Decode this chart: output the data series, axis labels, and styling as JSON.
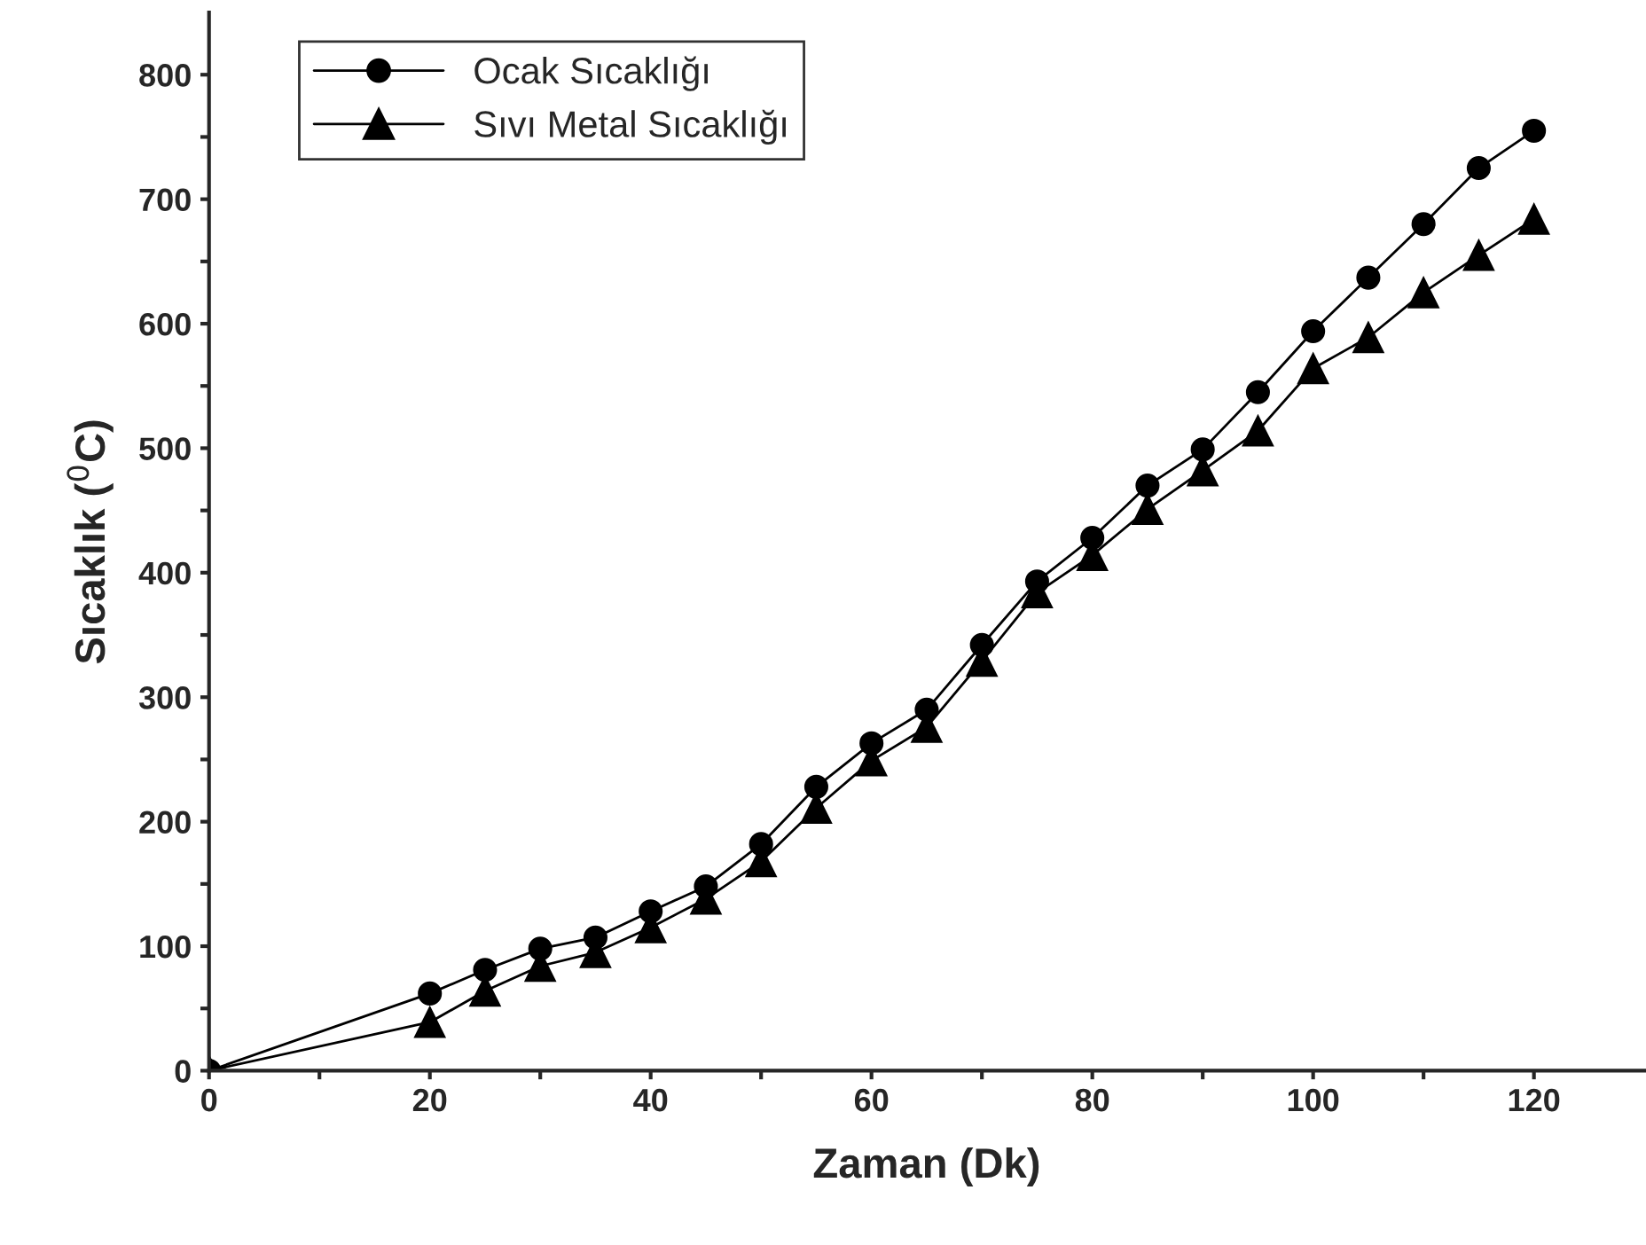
{
  "chart_data": {
    "type": "line",
    "xlabel": "Zaman (Dk)",
    "ylabel": "Sıcaklık ($^{0}$C)",
    "xlim": [
      0,
      130
    ],
    "ylim": [
      0,
      850
    ],
    "xticks": [
      0,
      {
        "value": 10,
        "label": null
      },
      20,
      {
        "value": 30,
        "label": null
      },
      40,
      {
        "value": 50,
        "label": null
      },
      60,
      {
        "value": 70,
        "label": null
      },
      80,
      {
        "value": 90,
        "label": null
      },
      100,
      {
        "value": 110,
        "label": null
      },
      120
    ],
    "yticks": [
      0,
      {
        "value": 50,
        "label": null
      },
      100,
      {
        "value": 150,
        "label": null
      },
      200,
      {
        "value": 250,
        "label": null
      },
      300,
      {
        "value": 350,
        "label": null
      },
      400,
      {
        "value": 450,
        "label": null
      },
      500,
      {
        "value": 550,
        "label": null
      },
      600,
      {
        "value": 650,
        "label": null
      },
      700,
      {
        "value": 750,
        "label": null
      },
      800
    ],
    "legend": "top left",
    "grid": false,
    "line_style": "solid",
    "series": [
      {
        "name": "Ocak Sıcaklığı",
        "color": "#000000",
        "marker": "circle",
        "x": [
          0,
          20,
          25,
          30,
          35,
          40,
          45,
          50,
          55,
          60,
          65,
          70,
          75,
          80,
          85,
          90,
          95,
          100,
          105,
          110,
          115,
          120
        ],
        "values": [
          0,
          62,
          81,
          98,
          107,
          128,
          148,
          182,
          228,
          263,
          290,
          342,
          393,
          428,
          470,
          499,
          545,
          594,
          637,
          680,
          725,
          755
        ]
      },
      {
        "name": "Sıvı Metal Sıcaklığı",
        "color": "#000000",
        "marker": "triangle",
        "x": [
          0,
          20,
          25,
          30,
          35,
          40,
          45,
          50,
          55,
          60,
          65,
          70,
          75,
          80,
          85,
          90,
          95,
          100,
          105,
          110,
          115,
          120
        ],
        "values": [
          0,
          39,
          64,
          84,
          95,
          115,
          138,
          168,
          211,
          249,
          276,
          329,
          384,
          414,
          451,
          482,
          514,
          564,
          589,
          625,
          655,
          684
        ]
      }
    ]
  }
}
